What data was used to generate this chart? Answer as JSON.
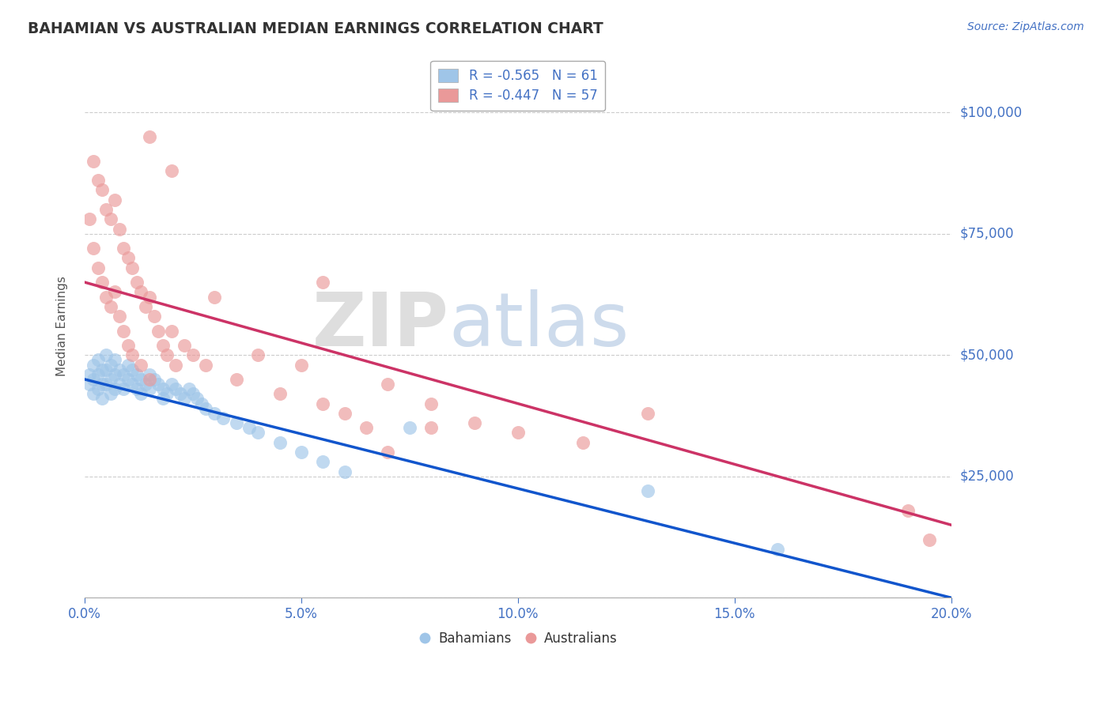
{
  "title": "BAHAMIAN VS AUSTRALIAN MEDIAN EARNINGS CORRELATION CHART",
  "source_text": "Source: ZipAtlas.com",
  "ylabel": "Median Earnings",
  "xlim": [
    0.0,
    0.2
  ],
  "ylim": [
    0,
    112000
  ],
  "yticks": [
    0,
    25000,
    50000,
    75000,
    100000
  ],
  "ytick_labels": [
    "",
    "$25,000",
    "$50,000",
    "$75,000",
    "$100,000"
  ],
  "xticks": [
    0.0,
    0.05,
    0.1,
    0.15,
    0.2
  ],
  "xtick_labels": [
    "0.0%",
    "5.0%",
    "10.0%",
    "15.0%",
    "20.0%"
  ],
  "blue_R": -0.565,
  "blue_N": 61,
  "pink_R": -0.447,
  "pink_N": 57,
  "blue_color": "#9fc5e8",
  "pink_color": "#ea9999",
  "blue_line_color": "#1155cc",
  "pink_line_color": "#cc3366",
  "tick_color": "#4472c4",
  "legend_label_blue": "Bahamians",
  "legend_label_pink": "Australians",
  "blue_scatter_x": [
    0.001,
    0.001,
    0.002,
    0.002,
    0.002,
    0.003,
    0.003,
    0.003,
    0.004,
    0.004,
    0.004,
    0.005,
    0.005,
    0.005,
    0.006,
    0.006,
    0.006,
    0.007,
    0.007,
    0.007,
    0.008,
    0.008,
    0.009,
    0.009,
    0.01,
    0.01,
    0.011,
    0.011,
    0.012,
    0.012,
    0.013,
    0.013,
    0.014,
    0.015,
    0.015,
    0.016,
    0.017,
    0.018,
    0.018,
    0.019,
    0.02,
    0.021,
    0.022,
    0.023,
    0.024,
    0.025,
    0.026,
    0.027,
    0.028,
    0.03,
    0.032,
    0.035,
    0.038,
    0.04,
    0.045,
    0.05,
    0.055,
    0.06,
    0.075,
    0.13,
    0.16
  ],
  "blue_scatter_y": [
    46000,
    44000,
    48000,
    45000,
    42000,
    49000,
    46000,
    43000,
    47000,
    44000,
    41000,
    50000,
    47000,
    44000,
    48000,
    45000,
    42000,
    49000,
    46000,
    43000,
    47000,
    44000,
    46000,
    43000,
    48000,
    45000,
    47000,
    44000,
    46000,
    43000,
    45000,
    42000,
    44000,
    46000,
    43000,
    45000,
    44000,
    43000,
    41000,
    42000,
    44000,
    43000,
    42000,
    41000,
    43000,
    42000,
    41000,
    40000,
    39000,
    38000,
    37000,
    36000,
    35000,
    34000,
    32000,
    30000,
    28000,
    26000,
    35000,
    22000,
    10000
  ],
  "pink_scatter_x": [
    0.001,
    0.002,
    0.002,
    0.003,
    0.003,
    0.004,
    0.004,
    0.005,
    0.005,
    0.006,
    0.006,
    0.007,
    0.007,
    0.008,
    0.008,
    0.009,
    0.009,
    0.01,
    0.01,
    0.011,
    0.011,
    0.012,
    0.013,
    0.013,
    0.014,
    0.015,
    0.015,
    0.016,
    0.017,
    0.018,
    0.019,
    0.02,
    0.021,
    0.023,
    0.025,
    0.028,
    0.03,
    0.035,
    0.04,
    0.045,
    0.05,
    0.055,
    0.06,
    0.065,
    0.07,
    0.08,
    0.09,
    0.1,
    0.115,
    0.13,
    0.015,
    0.02,
    0.055,
    0.07,
    0.08,
    0.19,
    0.195
  ],
  "pink_scatter_y": [
    78000,
    90000,
    72000,
    86000,
    68000,
    84000,
    65000,
    80000,
    62000,
    78000,
    60000,
    82000,
    63000,
    76000,
    58000,
    72000,
    55000,
    70000,
    52000,
    68000,
    50000,
    65000,
    63000,
    48000,
    60000,
    62000,
    45000,
    58000,
    55000,
    52000,
    50000,
    55000,
    48000,
    52000,
    50000,
    48000,
    62000,
    45000,
    50000,
    42000,
    48000,
    40000,
    38000,
    35000,
    44000,
    40000,
    36000,
    34000,
    32000,
    38000,
    95000,
    88000,
    65000,
    30000,
    35000,
    18000,
    12000
  ]
}
